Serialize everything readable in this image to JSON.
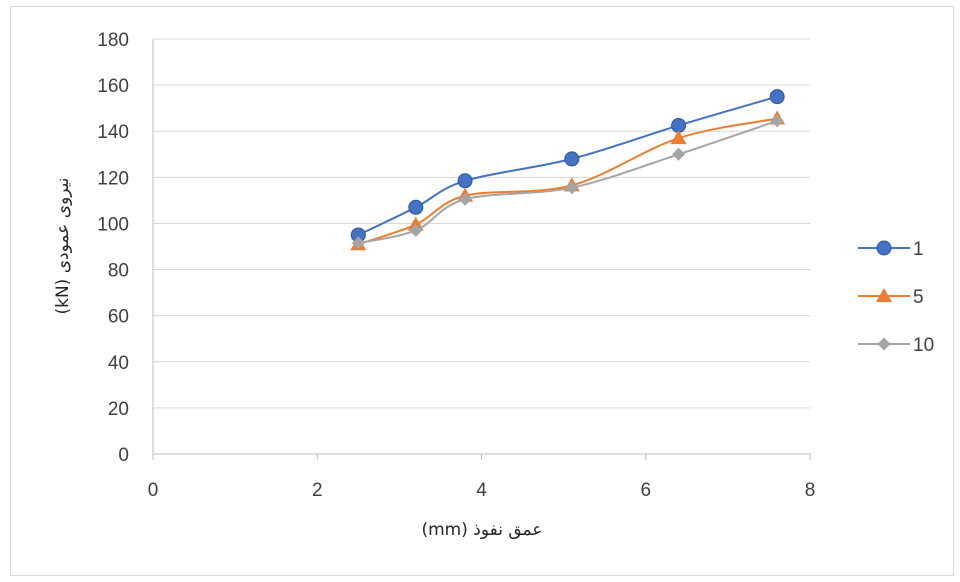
{
  "chart_data": {
    "type": "line",
    "title": "",
    "xlabel": "عمق نفوذ (mm)",
    "ylabel": "نیروی عمودی (kN)",
    "xlim": [
      0,
      8
    ],
    "ylim": [
      0,
      180
    ],
    "xticks": [
      0,
      2,
      4,
      6,
      8
    ],
    "yticks": [
      0,
      20,
      40,
      60,
      80,
      100,
      120,
      140,
      160,
      180
    ],
    "grid": "horizontal",
    "legend_position": "right",
    "series": [
      {
        "name": "1",
        "color": "#4472c4",
        "marker": "circle",
        "x": [
          2.5,
          3.2,
          3.8,
          5.1,
          6.4,
          7.6
        ],
        "y": [
          95,
          107,
          118.5,
          128,
          142.5,
          155
        ]
      },
      {
        "name": "5",
        "color": "#ed7d31",
        "marker": "triangle",
        "x": [
          2.5,
          3.2,
          3.8,
          5.1,
          6.4,
          7.6
        ],
        "y": [
          91,
          99.5,
          112,
          116.5,
          137,
          145.5
        ]
      },
      {
        "name": "10",
        "color": "#a5a5a5",
        "marker": "diamond",
        "x": [
          2.5,
          3.2,
          3.8,
          5.1,
          6.4,
          7.6
        ],
        "y": [
          91.5,
          97,
          110.5,
          115.5,
          130,
          144.5
        ]
      }
    ]
  }
}
